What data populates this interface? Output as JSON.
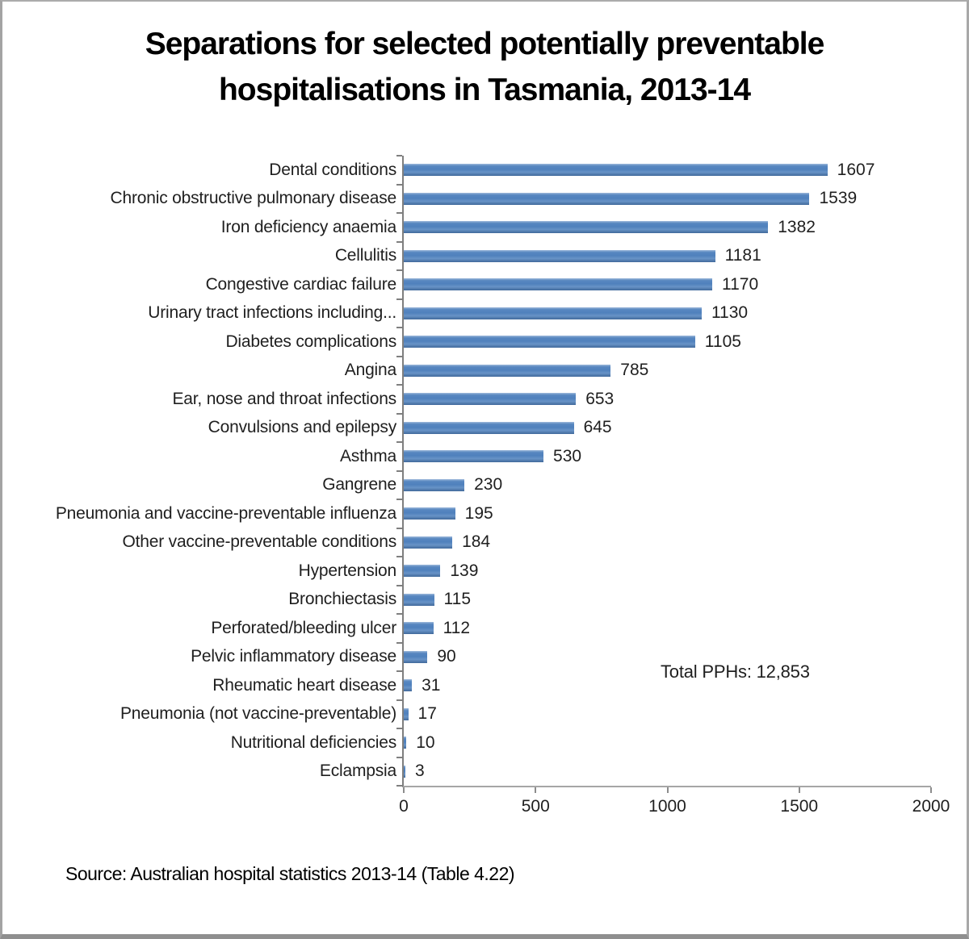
{
  "chart_data": {
    "type": "bar",
    "orientation": "horizontal",
    "title": "Separations for selected potentially preventable hospitalisations in Tasmania, 2013-14",
    "title_lines": [
      "Separations for selected potentially preventable",
      "hospitalisations in Tasmania, 2013-14"
    ],
    "categories": [
      "Dental conditions",
      "Chronic obstructive pulmonary disease",
      "Iron deficiency anaemia",
      "Cellulitis",
      "Congestive cardiac failure",
      "Urinary tract infections including...",
      "Diabetes complications",
      "Angina",
      "Ear, nose and throat infections",
      "Convulsions and epilepsy",
      "Asthma",
      "Gangrene",
      "Pneumonia and vaccine-preventable influenza",
      "Other vaccine-preventable conditions",
      "Hypertension",
      "Bronchiectasis",
      "Perforated/bleeding ulcer",
      "Pelvic inflammatory disease",
      "Rheumatic heart disease",
      "Pneumonia (not vaccine-preventable)",
      "Nutritional deficiencies",
      "Eclampsia"
    ],
    "values": [
      1607,
      1539,
      1382,
      1181,
      1170,
      1130,
      1105,
      785,
      653,
      645,
      530,
      230,
      195,
      184,
      139,
      115,
      112,
      90,
      31,
      17,
      10,
      3
    ],
    "xlim": [
      0,
      2000
    ],
    "x_ticks": [
      0,
      500,
      1000,
      1500,
      2000
    ],
    "bar_color": "#4f81bd",
    "grid": false,
    "legend": "none",
    "annotation": "Total PPHs: 12,853",
    "source": "Source: Australian hospital statistics 2013-14 (Table 4.22)"
  }
}
